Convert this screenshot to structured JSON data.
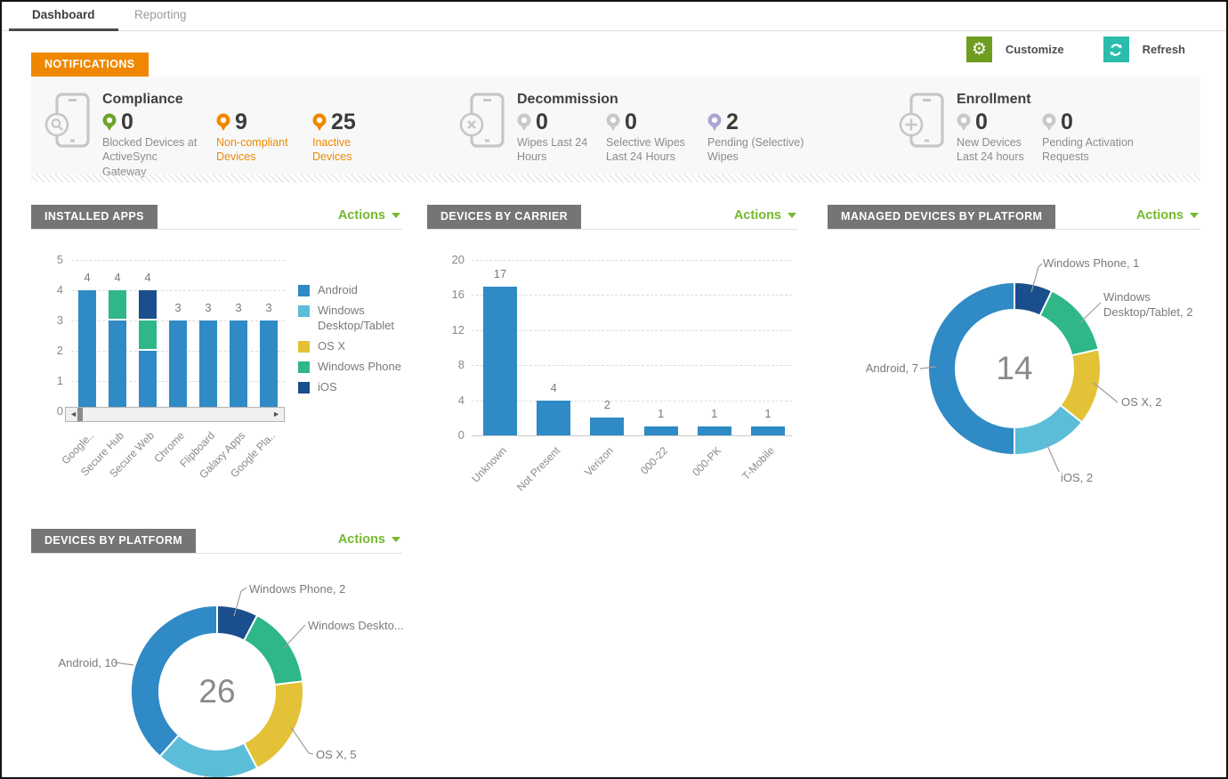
{
  "tabs": {
    "dashboard": "Dashboard",
    "reporting": "Reporting"
  },
  "toolbar": {
    "customize": "Customize",
    "refresh": "Refresh"
  },
  "colors": {
    "orange": "#ef8800",
    "actions_green": "#76b82e",
    "customize_green": "#6f9d20",
    "refresh_teal": "#2bbcac",
    "header_gray": "#757575",
    "android_blue": "#2f8ac5",
    "light_blue": "#5cbdd9",
    "yellow": "#e3c237",
    "green": "#2fb787",
    "navy": "#1b4e8c",
    "pin_green": "#6fa32c",
    "pin_gray": "#c9c9c9",
    "pin_lavender": "#aba7d4"
  },
  "notifications": {
    "banner": "NOTIFICATIONS",
    "sections": [
      {
        "title": "Compliance",
        "icon": "phone-search",
        "stats": [
          {
            "value": "0",
            "pin_color": "#6fa32c",
            "label": "Blocked Devices at ActiveSync Gateway",
            "label_color": "gray"
          },
          {
            "value": "9",
            "pin_color": "#ef8800",
            "label": "Non-compliant Devices",
            "label_color": "orange"
          },
          {
            "value": "25",
            "pin_color": "#ef8800",
            "label": "Inactive Devices",
            "label_color": "orange"
          }
        ]
      },
      {
        "title": "Decommission",
        "icon": "phone-x",
        "stats": [
          {
            "value": "0",
            "pin_color": "#c9c9c9",
            "label": "Wipes Last 24 Hours",
            "label_color": "gray"
          },
          {
            "value": "0",
            "pin_color": "#c9c9c9",
            "label": "Selective Wipes Last 24 Hours",
            "label_color": "gray"
          },
          {
            "value": "2",
            "pin_color": "#aba7d4",
            "label": "Pending (Selective) Wipes",
            "label_color": "gray"
          }
        ]
      },
      {
        "title": "Enrollment",
        "icon": "phone-plus",
        "stats": [
          {
            "value": "0",
            "pin_color": "#c9c9c9",
            "label": "New Devices Last 24 hours",
            "label_color": "gray"
          },
          {
            "value": "0",
            "pin_color": "#c9c9c9",
            "label": "Pending Activation Requests",
            "label_color": "gray"
          }
        ]
      }
    ]
  },
  "panels": {
    "installed_apps": {
      "title": "INSTALLED APPS",
      "actions": "Actions"
    },
    "devices_by_carrier": {
      "title": "DEVICES BY CARRIER",
      "actions": "Actions"
    },
    "managed_by_platform": {
      "title": "MANAGED DEVICES BY PLATFORM",
      "actions": "Actions"
    },
    "devices_by_platform": {
      "title": "DEVICES BY PLATFORM",
      "actions": "Actions"
    }
  },
  "chart_data": [
    {
      "type": "bar",
      "title": "INSTALLED APPS",
      "stacked": true,
      "categories": [
        "Google..",
        "Secure Hub",
        "Secure Web",
        "Chrome",
        "Flipboard",
        "Galaxy Apps",
        "Google Pla.."
      ],
      "series": [
        {
          "name": "Android",
          "color": "#2f8ac5",
          "values": [
            4,
            3,
            2,
            3,
            3,
            3,
            3
          ]
        },
        {
          "name": "Windows Desktop/Tablet",
          "color": "#5cbdd9",
          "values": [
            0,
            0,
            0,
            0,
            0,
            0,
            0
          ]
        },
        {
          "name": "OS X",
          "color": "#e3c237",
          "values": [
            0,
            0,
            0,
            0,
            0,
            0,
            0
          ]
        },
        {
          "name": "Windows Phone",
          "color": "#2fb787",
          "values": [
            0,
            1,
            1,
            0,
            0,
            0,
            0
          ]
        },
        {
          "name": "iOS",
          "color": "#1b4e8c",
          "values": [
            0,
            0,
            1,
            0,
            0,
            0,
            0
          ]
        }
      ],
      "totals": [
        4,
        4,
        4,
        3,
        3,
        3,
        3
      ],
      "ylim": [
        0,
        5
      ],
      "yticks": [
        0,
        1,
        2,
        3,
        4,
        5
      ],
      "legend_position": "right",
      "grid": "dashed"
    },
    {
      "type": "bar",
      "title": "DEVICES BY CARRIER",
      "categories": [
        "Unknown",
        "Not Present",
        "Verizon",
        "000-22",
        "000-PK",
        "T-Mobile"
      ],
      "values": [
        17,
        4,
        2,
        1,
        1,
        1
      ],
      "color": "#2f8ac5",
      "ylim": [
        0,
        20
      ],
      "yticks": [
        0,
        4,
        8,
        12,
        16,
        20
      ],
      "grid": "dashed"
    },
    {
      "type": "donut",
      "title": "MANAGED DEVICES BY PLATFORM",
      "center": "14",
      "slices": [
        {
          "label": "Windows Phone, 1",
          "value": 1,
          "color": "#1b4e8c"
        },
        {
          "label": "Windows Desktop/Tablet, 2",
          "value": 2,
          "color": "#2fb787"
        },
        {
          "label": "OS X, 2",
          "value": 2,
          "color": "#e3c237"
        },
        {
          "label": "iOS, 2",
          "value": 2,
          "color": "#5cbdd9"
        },
        {
          "label": "Android, 7",
          "value": 7,
          "color": "#2f8ac5"
        }
      ]
    },
    {
      "type": "donut",
      "title": "DEVICES BY PLATFORM",
      "center": "26",
      "slices": [
        {
          "label": "Windows Phone, 2",
          "value": 2,
          "color": "#1b4e8c"
        },
        {
          "label": "Windows Deskto...",
          "value": 4,
          "color": "#2fb787"
        },
        {
          "label": "OS X, 5",
          "value": 5,
          "color": "#e3c237"
        },
        {
          "label": "",
          "value": 5,
          "color": "#5cbdd9"
        },
        {
          "label": "Android, 10",
          "value": 10,
          "color": "#2f8ac5"
        }
      ]
    }
  ]
}
